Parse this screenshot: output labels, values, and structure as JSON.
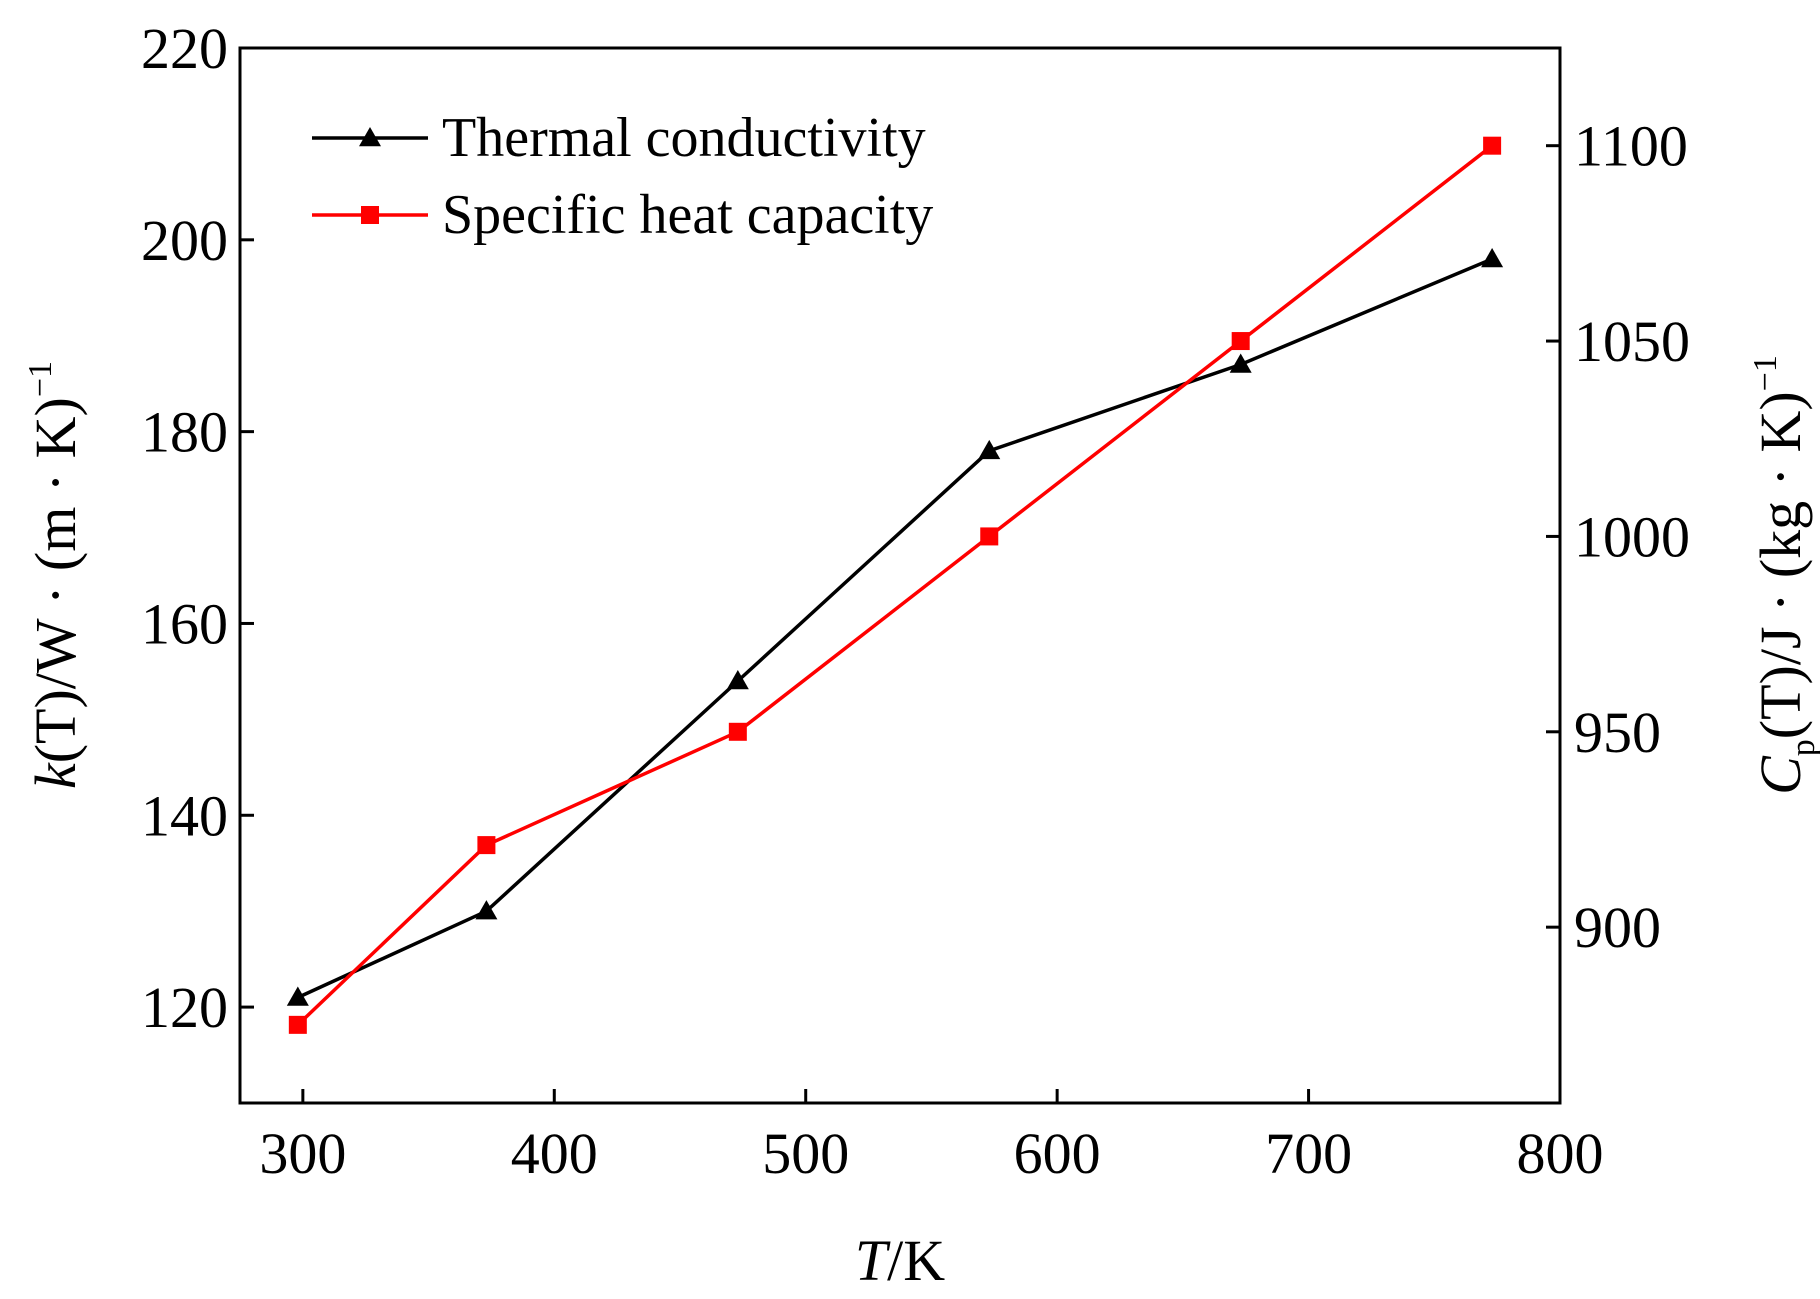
{
  "chart_data": {
    "type": "line",
    "x_axis": {
      "label_italic": "T",
      "label_rest": "/K",
      "ticks": [
        300,
        400,
        500,
        600,
        700,
        800
      ],
      "range": [
        275,
        800
      ]
    },
    "y_left_axis": {
      "label_italic": "k",
      "label_rest": "(T)/W · (m · K)",
      "label_sup": "−1",
      "ticks": [
        120,
        140,
        160,
        180,
        200,
        220
      ],
      "range": [
        110,
        220
      ]
    },
    "y_right_axis": {
      "label_italic": "C",
      "label_sub": "p",
      "label_rest": "(T)/J · (kg · K)",
      "label_sup": "−1",
      "ticks": [
        900,
        950,
        1000,
        1050,
        1100
      ],
      "range": [
        855,
        1125
      ]
    },
    "legend_position": "top-left",
    "series": [
      {
        "name": "Thermal conductivity",
        "axis": "left",
        "color": "#000000",
        "marker": "triangle",
        "x": [
          298,
          373,
          473,
          573,
          673,
          773
        ],
        "y": [
          121,
          130,
          154,
          178,
          187,
          198
        ]
      },
      {
        "name": "Specific heat capacity",
        "axis": "right",
        "color": "#ff0000",
        "marker": "square",
        "x": [
          298,
          373,
          473,
          573,
          673,
          773
        ],
        "y": [
          875,
          921,
          950,
          1000,
          1050,
          1100
        ]
      }
    ]
  }
}
